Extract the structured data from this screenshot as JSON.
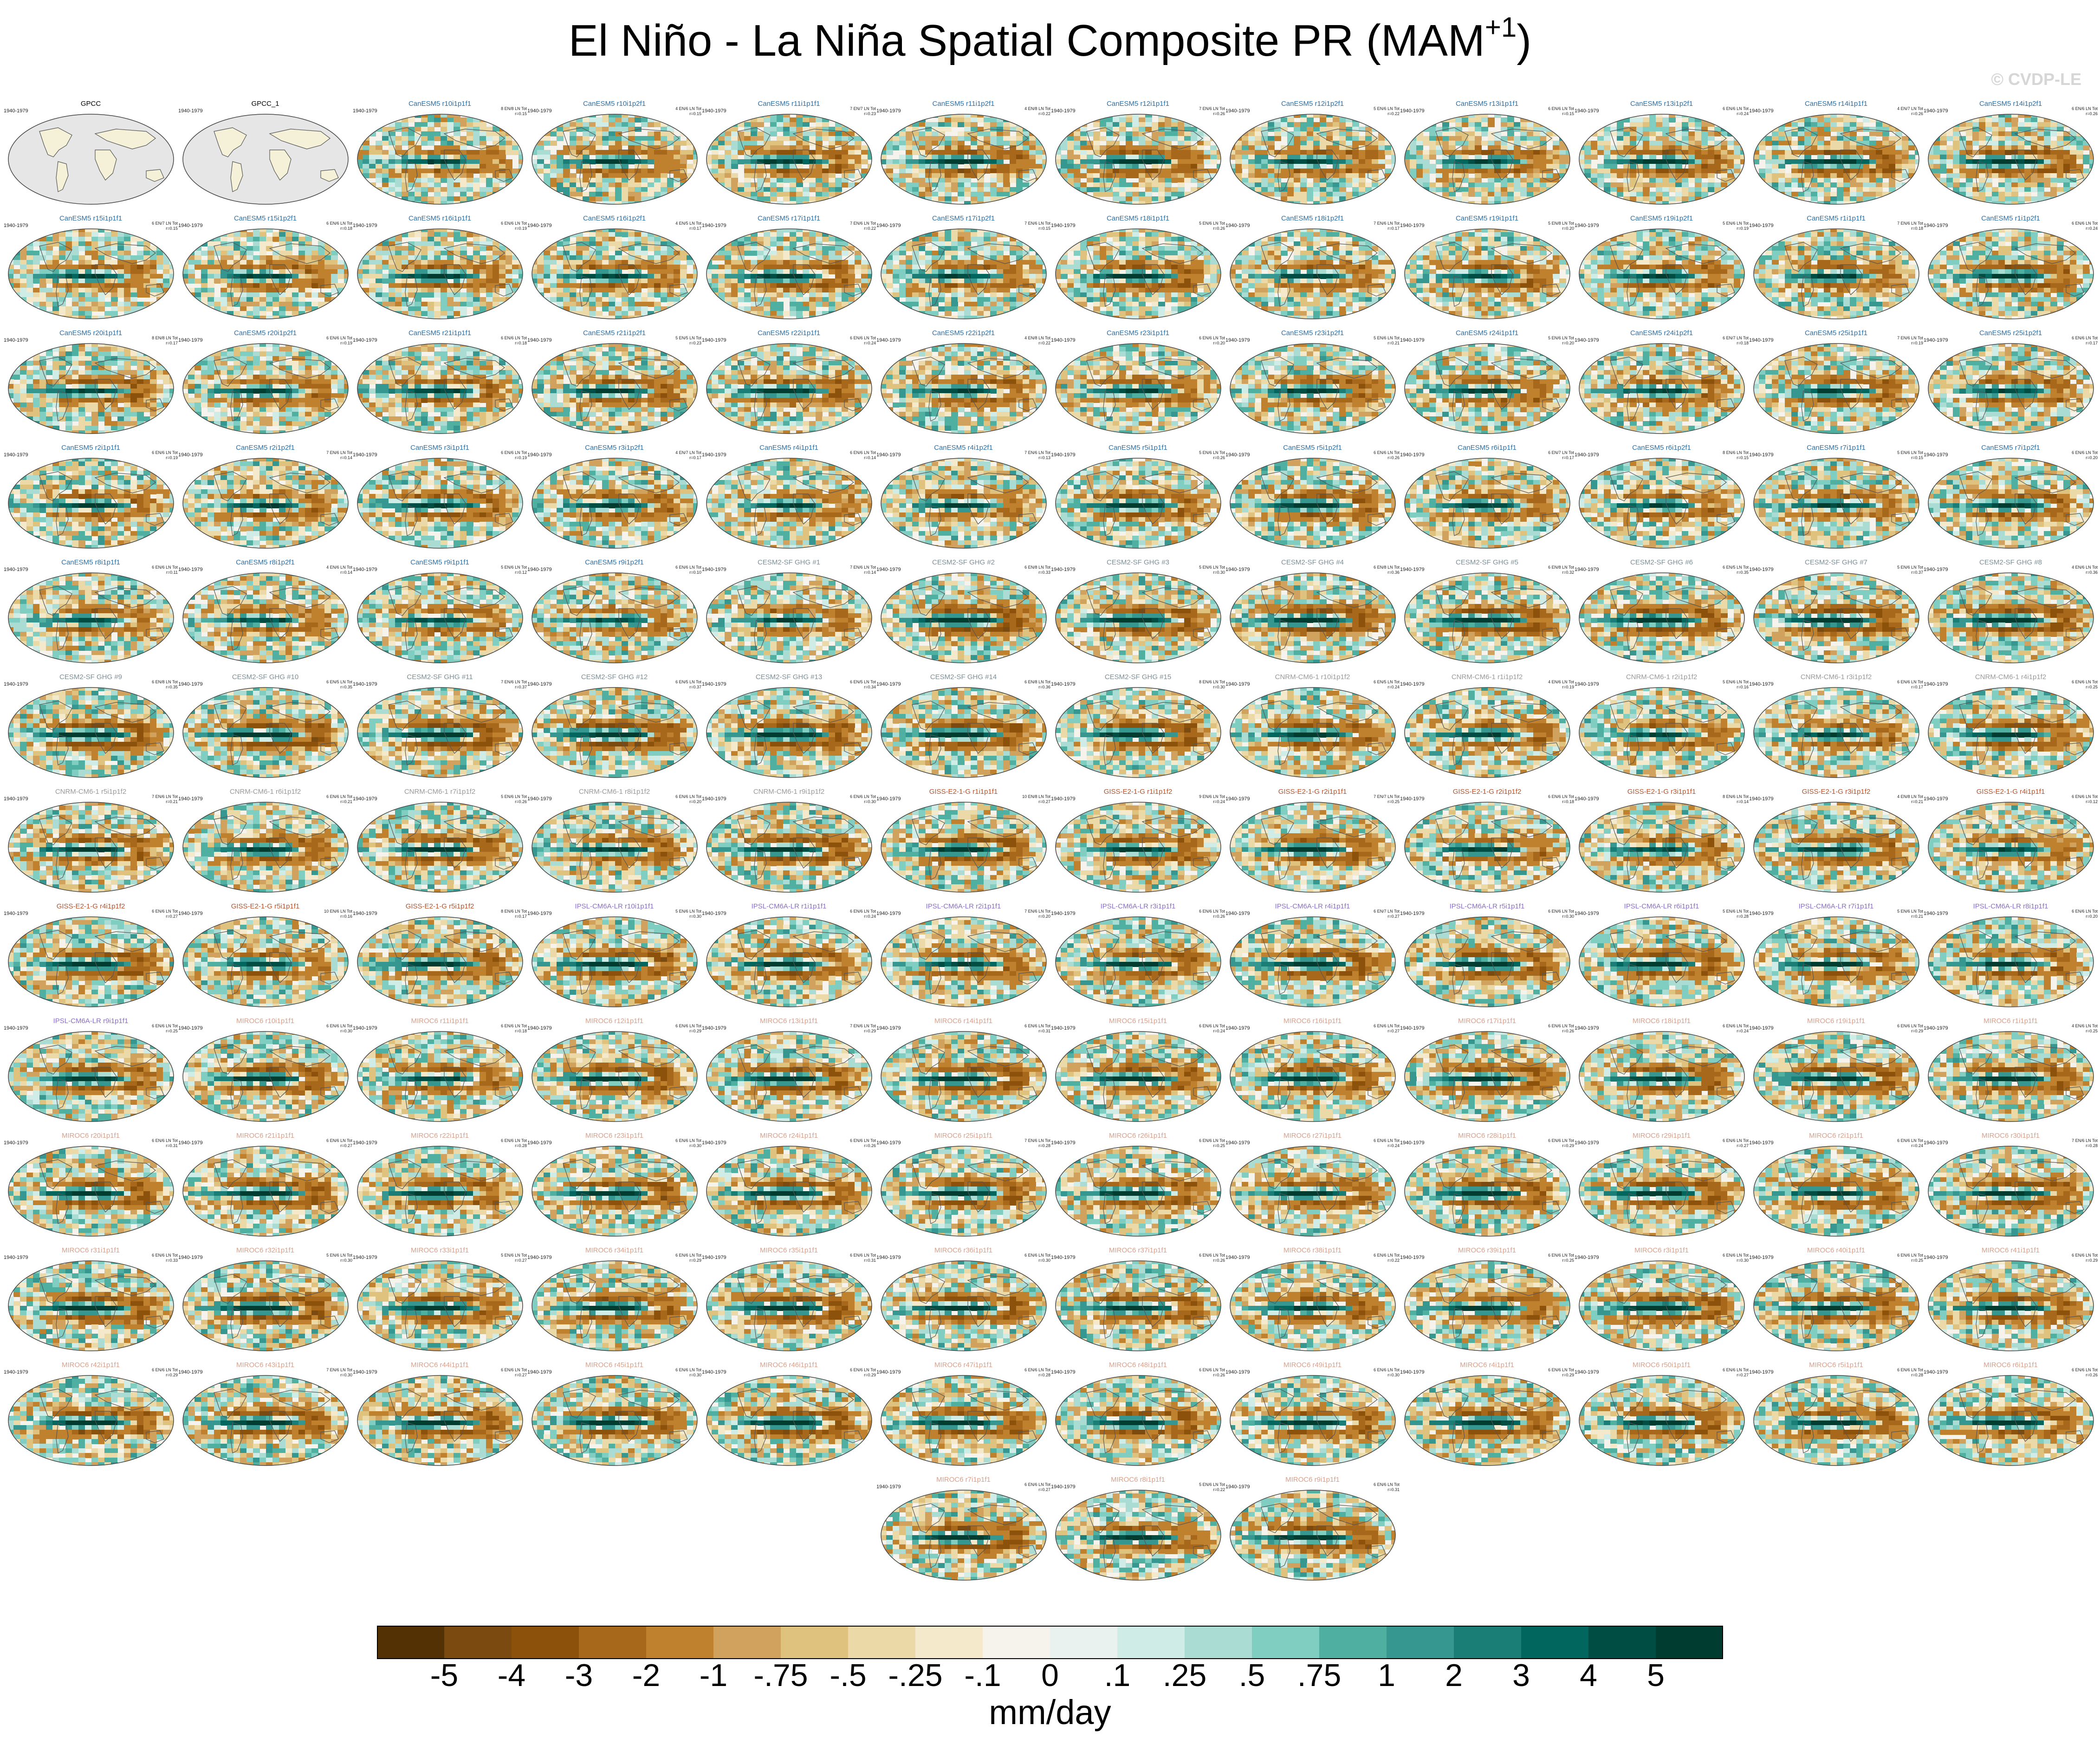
{
  "chart_data": {
    "type": "heatmap",
    "title": "El Niño - La Niña Spatial Composite PR (MAM",
    "title_superscript": "+1",
    "title_close": ")",
    "watermark": "© CVDP-LE",
    "period": "1940-1979",
    "variable": "PR",
    "season": "MAM+1",
    "projection": "Robinson (global map)",
    "units": "mm/day",
    "colorbar": {
      "levels": [
        "-5",
        "-4",
        "-3",
        "-2",
        "-1",
        "-.75",
        "-.5",
        "-.25",
        "-.1",
        "0",
        ".1",
        ".25",
        ".5",
        ".75",
        "1",
        "2",
        "3",
        "4",
        "5"
      ],
      "colors": [
        "#543005",
        "#7a4a10",
        "#8c510a",
        "#a7681c",
        "#bf812d",
        "#d0a25e",
        "#dfc27d",
        "#ecd9a8",
        "#f4eacb",
        "#f5f3ec",
        "#eaf2f0",
        "#d0ece6",
        "#abdcd3",
        "#80cdc1",
        "#4fb0a2",
        "#35978f",
        "#1a7e76",
        "#01665e",
        "#004d44",
        "#003c30"
      ]
    },
    "panels": [
      {
        "name": "GPCC",
        "color": "#000000",
        "stats": "",
        "missing": true
      },
      {
        "name": "GPCC_1",
        "color": "#000000",
        "stats": "",
        "missing": true
      },
      {
        "name": "CanESM5 r10i1p1f1",
        "color": "#2b6fa8",
        "stats": "8 EN/8 LN Tot\nr=0.15"
      },
      {
        "name": "CanESM5 r10i1p2f1",
        "color": "#2b6fa8",
        "stats": "4 EN/6 LN Tot\nr=0.15"
      },
      {
        "name": "CanESM5 r11i1p1f1",
        "color": "#2b6fa8",
        "stats": "7 EN/7 LN Tot\nr=0.23"
      },
      {
        "name": "CanESM5 r11i1p2f1",
        "color": "#2b6fa8",
        "stats": "4 EN/8 LN Tot\nr=0.22"
      },
      {
        "name": "CanESM5 r12i1p1f1",
        "color": "#2b6fa8",
        "stats": "7 EN/6 LN Tot\nr=0.26"
      },
      {
        "name": "CanESM5 r12i1p2f1",
        "color": "#2b6fa8",
        "stats": "5 EN/6 LN Tot\nr=0.22"
      },
      {
        "name": "CanESM5 r13i1p1f1",
        "color": "#2b6fa8",
        "stats": "6 EN/6 LN Tot\nr=0.15"
      },
      {
        "name": "CanESM5 r13i1p2f1",
        "color": "#2b6fa8",
        "stats": "6 EN/6 LN Tot\nr=0.24"
      },
      {
        "name": "CanESM5 r14i1p1f1",
        "color": "#2b6fa8",
        "stats": "4 EN/7 LN Tot\nr=0.26"
      },
      {
        "name": "CanESM5 r14i1p2f1",
        "color": "#2b6fa8",
        "stats": "6 EN/6 LN Tot\nr=0.26"
      },
      {
        "name": "CanESM5 r15i1p1f1",
        "color": "#2b6fa8",
        "stats": "6 EN/7 LN Tot\nr=0.15"
      },
      {
        "name": "CanESM5 r15i1p2f1",
        "color": "#2b6fa8",
        "stats": "6 EN/6 LN Tot\nr=0.18"
      },
      {
        "name": "CanESM5 r16i1p1f1",
        "color": "#2b6fa8",
        "stats": "6 EN/6 LN Tot\nr=0.19"
      },
      {
        "name": "CanESM5 r16i1p2f1",
        "color": "#2b6fa8",
        "stats": "4 EN/5 LN Tot\nr=0.17"
      },
      {
        "name": "CanESM5 r17i1p1f1",
        "color": "#2b6fa8",
        "stats": "7 EN/6 LN Tot\nr=0.22"
      },
      {
        "name": "CanESM5 r17i1p2f1",
        "color": "#2b6fa8",
        "stats": "7 EN/6 LN Tot\nr=0.15"
      },
      {
        "name": "CanESM5 r18i1p1f1",
        "color": "#2b6fa8",
        "stats": "5 EN/6 LN Tot\nr=0.26"
      },
      {
        "name": "CanESM5 r18i1p2f1",
        "color": "#2b6fa8",
        "stats": "7 EN/6 LN Tot\nr=0.17"
      },
      {
        "name": "CanESM5 r19i1p1f1",
        "color": "#2b6fa8",
        "stats": "5 EN/8 LN Tot\nr=0.20"
      },
      {
        "name": "CanESM5 r19i1p2f1",
        "color": "#2b6fa8",
        "stats": "5 EN/6 LN Tot\nr=0.19"
      },
      {
        "name": "CanESM5 r1i1p1f1",
        "color": "#2b6fa8",
        "stats": "7 EN/6 LN Tot\nr=0.18"
      },
      {
        "name": "CanESM5 r1i1p2f1",
        "color": "#2b6fa8",
        "stats": "6 EN/6 LN Tot\nr=0.24"
      },
      {
        "name": "CanESM5 r20i1p1f1",
        "color": "#2b6fa8",
        "stats": "8 EN/8 LN Tot\nr=0.17"
      },
      {
        "name": "CanESM5 r20i1p2f1",
        "color": "#2b6fa8",
        "stats": "6 EN/6 LN Tot\nr=0.19"
      },
      {
        "name": "CanESM5 r21i1p1f1",
        "color": "#2b6fa8",
        "stats": "6 EN/6 LN Tot\nr=0.18"
      },
      {
        "name": "CanESM5 r21i1p2f1",
        "color": "#2b6fa8",
        "stats": "5 EN/5 LN Tot\nr=0.23"
      },
      {
        "name": "CanESM5 r22i1p1f1",
        "color": "#2b6fa8",
        "stats": "6 EN/6 LN Tot\nr=0.24"
      },
      {
        "name": "CanESM5 r22i1p2f1",
        "color": "#2b6fa8",
        "stats": "4 EN/8 LN Tot\nr=0.22"
      },
      {
        "name": "CanESM5 r23i1p1f1",
        "color": "#2b6fa8",
        "stats": "6 EN/6 LN Tot\nr=0.20"
      },
      {
        "name": "CanESM5 r23i1p2f1",
        "color": "#2b6fa8",
        "stats": "5 EN/6 LN Tot\nr=0.21"
      },
      {
        "name": "CanESM5 r24i1p1f1",
        "color": "#2b6fa8",
        "stats": "5 EN/6 LN Tot\nr=0.20"
      },
      {
        "name": "CanESM5 r24i1p2f1",
        "color": "#2b6fa8",
        "stats": "6 EN/7 LN Tot\nr=0.18"
      },
      {
        "name": "CanESM5 r25i1p1f1",
        "color": "#2b6fa8",
        "stats": "7 EN/6 LN Tot\nr=0.19"
      },
      {
        "name": "CanESM5 r25i1p2f1",
        "color": "#2b6fa8",
        "stats": "6 EN/6 LN Tot\nr=0.17"
      },
      {
        "name": "CanESM5 r2i1p1f1",
        "color": "#2b6fa8",
        "stats": "6 EN/6 LN Tot\nr=0.19"
      },
      {
        "name": "CanESM5 r2i1p2f1",
        "color": "#2b6fa8",
        "stats": "7 EN/6 LN Tot\nr=0.14"
      },
      {
        "name": "CanESM5 r3i1p1f1",
        "color": "#2b6fa8",
        "stats": "6 EN/6 LN Tot\nr=0.19"
      },
      {
        "name": "CanESM5 r3i1p2f1",
        "color": "#2b6fa8",
        "stats": "4 EN/7 LN Tot\nr=0.17"
      },
      {
        "name": "CanESM5 r4i1p1f1",
        "color": "#2b6fa8",
        "stats": "6 EN/6 LN Tot\nr=0.14"
      },
      {
        "name": "CanESM5 r4i1p2f1",
        "color": "#2b6fa8",
        "stats": "7 EN/6 LN Tot\nr=0.13"
      },
      {
        "name": "CanESM5 r5i1p1f1",
        "color": "#2b6fa8",
        "stats": "5 EN/6 LN Tot\nr=0.26"
      },
      {
        "name": "CanESM5 r5i1p2f1",
        "color": "#2b6fa8",
        "stats": "6 EN/6 LN Tot\nr=0.26"
      },
      {
        "name": "CanESM5 r6i1p1f1",
        "color": "#2b6fa8",
        "stats": "6 EN/7 LN Tot\nr=0.17"
      },
      {
        "name": "CanESM5 r6i1p2f1",
        "color": "#2b6fa8",
        "stats": "8 EN/6 LN Tot\nr=0.15"
      },
      {
        "name": "CanESM5 r7i1p1f1",
        "color": "#2b6fa8",
        "stats": "5 EN/6 LN Tot\nr=0.15"
      },
      {
        "name": "CanESM5 r7i1p2f1",
        "color": "#2b6fa8",
        "stats": "6 EN/6 LN Tot\nr=0.20"
      },
      {
        "name": "CanESM5 r8i1p1f1",
        "color": "#2b6fa8",
        "stats": "6 EN/6 LN Tot\nr=0.11"
      },
      {
        "name": "CanESM5 r8i1p2f1",
        "color": "#2b6fa8",
        "stats": "4 EN/6 LN Tot\nr=0.14"
      },
      {
        "name": "CanESM5 r9i1p1f1",
        "color": "#2b6fa8",
        "stats": "5 EN/6 LN Tot\nr=0.12"
      },
      {
        "name": "CanESM5 r9i1p2f1",
        "color": "#2b6fa8",
        "stats": "6 EN/6 LN Tot\nr=0.10"
      },
      {
        "name": "CESM2-SF GHG #1",
        "color": "#7d8e96",
        "stats": "7 EN/6 LN Tot\nr=0.14"
      },
      {
        "name": "CESM2-SF GHG #2",
        "color": "#7d8e96",
        "stats": "6 EN/8 LN Tot\nr=0.33"
      },
      {
        "name": "CESM2-SF GHG #3",
        "color": "#7d8e96",
        "stats": "5 EN/6 LN Tot\nr=0.30"
      },
      {
        "name": "CESM2-SF GHG #4",
        "color": "#7d8e96",
        "stats": "6 EN/8 LN Tot\nr=0.36"
      },
      {
        "name": "CESM2-SF GHG #5",
        "color": "#7d8e96",
        "stats": "6 EN/8 LN Tot\nr=0.32"
      },
      {
        "name": "CESM2-SF GHG #6",
        "color": "#7d8e96",
        "stats": "6 EN/5 LN Tot\nr=0.35"
      },
      {
        "name": "CESM2-SF GHG #7",
        "color": "#7d8e96",
        "stats": "5 EN/6 LN Tot\nr=0.37"
      },
      {
        "name": "CESM2-SF GHG #8",
        "color": "#7d8e96",
        "stats": "4 EN/6 LN Tot\nr=0.36"
      },
      {
        "name": "CESM2-SF GHG #9",
        "color": "#7d8e96",
        "stats": "6 EN/8 LN Tot\nr=0.35"
      },
      {
        "name": "CESM2-SF GHG #10",
        "color": "#7d8e96",
        "stats": "6 EN/5 LN Tot\nr=0.35"
      },
      {
        "name": "CESM2-SF GHG #11",
        "color": "#7d8e96",
        "stats": "7 EN/6 LN Tot\nr=0.37"
      },
      {
        "name": "CESM2-SF GHG #12",
        "color": "#7d8e96",
        "stats": "6 EN/5 LN Tot\nr=0.37"
      },
      {
        "name": "CESM2-SF GHG #13",
        "color": "#7d8e96",
        "stats": "6 EN/5 LN Tot\nr=0.34"
      },
      {
        "name": "CESM2-SF GHG #14",
        "color": "#7d8e96",
        "stats": "6 EN/8 LN Tot\nr=0.36"
      },
      {
        "name": "CESM2-SF GHG #15",
        "color": "#7d8e96",
        "stats": "8 EN/6 LN Tot\nr=0.30"
      },
      {
        "name": "CNRM-CM6-1 r10i1p1f2",
        "color": "#9a9a9a",
        "stats": "6 EN/5 LN Tot\nr=0.24"
      },
      {
        "name": "CNRM-CM6-1 r1i1p1f2",
        "color": "#9a9a9a",
        "stats": "4 EN/6 LN Tot\nr=0.19"
      },
      {
        "name": "CNRM-CM6-1 r2i1p1f2",
        "color": "#9a9a9a",
        "stats": "5 EN/6 LN Tot\nr=0.16"
      },
      {
        "name": "CNRM-CM6-1 r3i1p1f2",
        "color": "#9a9a9a",
        "stats": "6 EN/6 LN Tot\nr=0.17"
      },
      {
        "name": "CNRM-CM6-1 r4i1p1f2",
        "color": "#9a9a9a",
        "stats": "6 EN/6 LN Tot\nr=0.25"
      },
      {
        "name": "CNRM-CM6-1 r5i1p1f2",
        "color": "#9a9a9a",
        "stats": "7 EN/6 LN Tot\nr=0.21"
      },
      {
        "name": "CNRM-CM6-1 r6i1p1f2",
        "color": "#9a9a9a",
        "stats": "6 EN/6 LN Tot\nr=0.21"
      },
      {
        "name": "CNRM-CM6-1 r7i1p1f2",
        "color": "#9a9a9a",
        "stats": "5 EN/6 LN Tot\nr=0.26"
      },
      {
        "name": "CNRM-CM6-1 r8i1p1f2",
        "color": "#9a9a9a",
        "stats": "6 EN/6 LN Tot\nr=0.20"
      },
      {
        "name": "CNRM-CM6-1 r9i1p1f2",
        "color": "#9a9a9a",
        "stats": "6 EN/6 LN Tot\nr=0.30"
      },
      {
        "name": "GISS-E2-1-G r1i1p1f1",
        "color": "#b5532c",
        "stats": "10 EN/8 LN Tot\nr=0.27"
      },
      {
        "name": "GISS-E2-1-G r1i1p1f2",
        "color": "#b5532c",
        "stats": "9 EN/6 LN Tot\nr=0.24"
      },
      {
        "name": "GISS-E2-1-G r2i1p1f1",
        "color": "#b5532c",
        "stats": "7 EN/7 LN Tot\nr=0.25"
      },
      {
        "name": "GISS-E2-1-G r2i1p1f2",
        "color": "#b5532c",
        "stats": "6 EN/6 LN Tot\nr=0.18"
      },
      {
        "name": "GISS-E2-1-G r3i1p1f1",
        "color": "#b5532c",
        "stats": "8 EN/6 LN Tot\nr=0.14"
      },
      {
        "name": "GISS-E2-1-G r3i1p1f2",
        "color": "#b5532c",
        "stats": "4 EN/8 LN Tot\nr=0.21"
      },
      {
        "name": "GISS-E2-1-G r4i1p1f1",
        "color": "#b5532c",
        "stats": "6 EN/6 LN Tot\nr=0.12"
      },
      {
        "name": "GISS-E2-1-G r4i1p1f2",
        "color": "#b5532c",
        "stats": "6 EN/6 LN Tot\nr=0.27"
      },
      {
        "name": "GISS-E2-1-G r5i1p1f1",
        "color": "#b5532c",
        "stats": "10 EN/6 LN Tot\nr=0.16"
      },
      {
        "name": "GISS-E2-1-G r5i1p1f2",
        "color": "#b5532c",
        "stats": "8 EN/6 LN Tot\nr=0.17"
      },
      {
        "name": "IPSL-CM6A-LR r10i1p1f1",
        "color": "#8a6fc4",
        "stats": "5 EN/6 LN Tot\nr=0.30"
      },
      {
        "name": "IPSL-CM6A-LR r1i1p1f1",
        "color": "#8a6fc4",
        "stats": "6 EN/6 LN Tot\nr=0.24"
      },
      {
        "name": "IPSL-CM6A-LR r2i1p1f1",
        "color": "#8a6fc4",
        "stats": "7 EN/6 LN Tot\nr=0.20"
      },
      {
        "name": "IPSL-CM6A-LR r3i1p1f1",
        "color": "#8a6fc4",
        "stats": "6 EN/6 LN Tot\nr=0.26"
      },
      {
        "name": "IPSL-CM6A-LR r4i1p1f1",
        "color": "#8a6fc4",
        "stats": "6 EN/7 LN Tot\nr=0.27"
      },
      {
        "name": "IPSL-CM6A-LR r5i1p1f1",
        "color": "#8a6fc4",
        "stats": "6 EN/6 LN Tot\nr=0.30"
      },
      {
        "name": "IPSL-CM6A-LR r6i1p1f1",
        "color": "#8a6fc4",
        "stats": "5 EN/6 LN Tot\nr=0.28"
      },
      {
        "name": "IPSL-CM6A-LR r7i1p1f1",
        "color": "#8a6fc4",
        "stats": "5 EN/6 LN Tot\nr=0.21"
      },
      {
        "name": "IPSL-CM6A-LR r8i1p1f1",
        "color": "#8a6fc4",
        "stats": "6 EN/6 LN Tot\nr=0.20"
      },
      {
        "name": "IPSL-CM6A-LR r9i1p1f1",
        "color": "#8a6fc4",
        "stats": "6 EN/6 LN Tot\nr=0.25"
      },
      {
        "name": "MIROC6 r10i1p1f1",
        "color": "#d8a08a",
        "stats": "6 EN/6 LN Tot\nr=0.30"
      },
      {
        "name": "MIROC6 r11i1p1f1",
        "color": "#d8a08a",
        "stats": "6 EN/6 LN Tot\nr=0.18"
      },
      {
        "name": "MIROC6 r12i1p1f1",
        "color": "#d8a08a",
        "stats": "6 EN/6 LN Tot\nr=0.29"
      },
      {
        "name": "MIROC6 r13i1p1f1",
        "color": "#d8a08a",
        "stats": "7 EN/6 LN Tot\nr=0.29"
      },
      {
        "name": "MIROC6 r14i1p1f1",
        "color": "#d8a08a",
        "stats": "6 EN/6 LN Tot\nr=0.31"
      },
      {
        "name": "MIROC6 r15i1p1f1",
        "color": "#d8a08a",
        "stats": "6 EN/6 LN Tot\nr=0.24"
      },
      {
        "name": "MIROC6 r16i1p1f1",
        "color": "#d8a08a",
        "stats": "6 EN/6 LN Tot\nr=0.27"
      },
      {
        "name": "MIROC6 r17i1p1f1",
        "color": "#d8a08a",
        "stats": "6 EN/6 LN Tot\nr=0.26"
      },
      {
        "name": "MIROC6 r18i1p1f1",
        "color": "#d8a08a",
        "stats": "6 EN/6 LN Tot\nr=0.24"
      },
      {
        "name": "MIROC6 r19i1p1f1",
        "color": "#d8a08a",
        "stats": "6 EN/6 LN Tot\nr=0.29"
      },
      {
        "name": "MIROC6 r1i1p1f1",
        "color": "#d8a08a",
        "stats": "4 EN/6 LN Tot\nr=0.25"
      },
      {
        "name": "MIROC6 r20i1p1f1",
        "color": "#d8a08a",
        "stats": "6 EN/6 LN Tot\nr=0.31"
      },
      {
        "name": "MIROC6 r21i1p1f1",
        "color": "#d8a08a",
        "stats": "6 EN/6 LN Tot\nr=0.27"
      },
      {
        "name": "MIROC6 r22i1p1f1",
        "color": "#d8a08a",
        "stats": "6 EN/6 LN Tot\nr=0.28"
      },
      {
        "name": "MIROC6 r23i1p1f1",
        "color": "#d8a08a",
        "stats": "6 EN/6 LN Tot\nr=0.30"
      },
      {
        "name": "MIROC6 r24i1p1f1",
        "color": "#d8a08a",
        "stats": "6 EN/6 LN Tot\nr=0.26"
      },
      {
        "name": "MIROC6 r25i1p1f1",
        "color": "#d8a08a",
        "stats": "7 EN/6 LN Tot\nr=0.28"
      },
      {
        "name": "MIROC6 r26i1p1f1",
        "color": "#d8a08a",
        "stats": "6 EN/6 LN Tot\nr=0.25"
      },
      {
        "name": "MIROC6 r27i1p1f1",
        "color": "#d8a08a",
        "stats": "6 EN/6 LN Tot\nr=0.24"
      },
      {
        "name": "MIROC6 r28i1p1f1",
        "color": "#d8a08a",
        "stats": "6 EN/6 LN Tot\nr=0.29"
      },
      {
        "name": "MIROC6 r29i1p1f1",
        "color": "#d8a08a",
        "stats": "6 EN/6 LN Tot\nr=0.27"
      },
      {
        "name": "MIROC6 r2i1p1f1",
        "color": "#d8a08a",
        "stats": "6 EN/6 LN Tot\nr=0.24"
      },
      {
        "name": "MIROC6 r30i1p1f1",
        "color": "#d8a08a",
        "stats": "7 EN/6 LN Tot\nr=0.28"
      },
      {
        "name": "MIROC6 r31i1p1f1",
        "color": "#d8a08a",
        "stats": "6 EN/6 LN Tot\nr=0.33"
      },
      {
        "name": "MIROC6 r32i1p1f1",
        "color": "#d8a08a",
        "stats": "5 EN/6 LN Tot\nr=0.30"
      },
      {
        "name": "MIROC6 r33i1p1f1",
        "color": "#d8a08a",
        "stats": "5 EN/6 LN Tot\nr=0.27"
      },
      {
        "name": "MIROC6 r34i1p1f1",
        "color": "#d8a08a",
        "stats": "6 EN/6 LN Tot\nr=0.29"
      },
      {
        "name": "MIROC6 r35i1p1f1",
        "color": "#d8a08a",
        "stats": "6 EN/6 LN Tot\nr=0.31"
      },
      {
        "name": "MIROC6 r36i1p1f1",
        "color": "#d8a08a",
        "stats": "6 EN/6 LN Tot\nr=0.30"
      },
      {
        "name": "MIROC6 r37i1p1f1",
        "color": "#d8a08a",
        "stats": "6 EN/6 LN Tot\nr=0.26"
      },
      {
        "name": "MIROC6 r38i1p1f1",
        "color": "#d8a08a",
        "stats": "6 EN/6 LN Tot\nr=0.22"
      },
      {
        "name": "MIROC6 r39i1p1f1",
        "color": "#d8a08a",
        "stats": "6 EN/6 LN Tot\nr=0.25"
      },
      {
        "name": "MIROC6 r3i1p1f1",
        "color": "#d8a08a",
        "stats": "6 EN/6 LN Tot\nr=0.30"
      },
      {
        "name": "MIROC6 r40i1p1f1",
        "color": "#d8a08a",
        "stats": "6 EN/6 LN Tot\nr=0.25"
      },
      {
        "name": "MIROC6 r41i1p1f1",
        "color": "#d8a08a",
        "stats": "6 EN/6 LN Tot\nr=0.29"
      },
      {
        "name": "MIROC6 r42i1p1f1",
        "color": "#d8a08a",
        "stats": "6 EN/6 LN Tot\nr=0.29"
      },
      {
        "name": "MIROC6 r43i1p1f1",
        "color": "#d8a08a",
        "stats": "7 EN/6 LN Tot\nr=0.30"
      },
      {
        "name": "MIROC6 r44i1p1f1",
        "color": "#d8a08a",
        "stats": "6 EN/6 LN Tot\nr=0.27"
      },
      {
        "name": "MIROC6 r45i1p1f1",
        "color": "#d8a08a",
        "stats": "6 EN/6 LN Tot\nr=0.30"
      },
      {
        "name": "MIROC6 r46i1p1f1",
        "color": "#d8a08a",
        "stats": "6 EN/6 LN Tot\nr=0.29"
      },
      {
        "name": "MIROC6 r47i1p1f1",
        "color": "#d8a08a",
        "stats": "6 EN/6 LN Tot\nr=0.28"
      },
      {
        "name": "MIROC6 r48i1p1f1",
        "color": "#d8a08a",
        "stats": "6 EN/6 LN Tot\nr=0.26"
      },
      {
        "name": "MIROC6 r49i1p1f1",
        "color": "#d8a08a",
        "stats": "6 EN/6 LN Tot\nr=0.30"
      },
      {
        "name": "MIROC6 r4i1p1f1",
        "color": "#d8a08a",
        "stats": "6 EN/6 LN Tot\nr=0.29"
      },
      {
        "name": "MIROC6 r50i1p1f1",
        "color": "#d8a08a",
        "stats": "6 EN/6 LN Tot\nr=0.27"
      },
      {
        "name": "MIROC6 r5i1p1f1",
        "color": "#d8a08a",
        "stats": "6 EN/6 LN Tot\nr=0.28"
      },
      {
        "name": "MIROC6 r6i1p1f1",
        "color": "#d8a08a",
        "stats": "6 EN/6 LN Tot\nr=0.26"
      },
      {
        "name": "MIROC6 r7i1p1f1",
        "color": "#d8a08a",
        "stats": "6 EN/6 LN Tot\nr=0.27"
      },
      {
        "name": "MIROC6 r8i1p1f1",
        "color": "#d8a08a",
        "stats": "5 EN/6 LN Tot\nr=0.22"
      },
      {
        "name": "MIROC6 r9i1p1f1",
        "color": "#d8a08a",
        "stats": "6 EN/6 LN Tot\nr=0.31"
      }
    ]
  }
}
